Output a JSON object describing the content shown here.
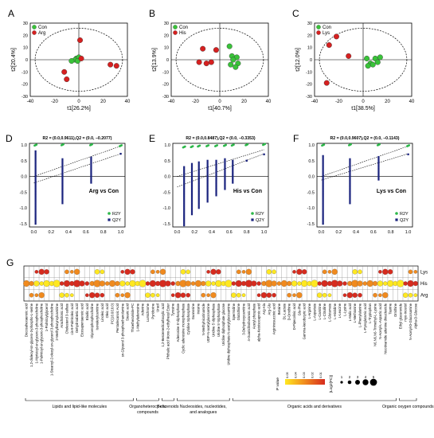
{
  "chart_data": [
    {
      "panel": "A",
      "type": "scatter",
      "xlabel": "t1[26.2%]",
      "ylabel": "t2[20.4%]",
      "xlim": [
        -40,
        40
      ],
      "ylim": [
        -30,
        30
      ],
      "xticks": [
        -40,
        -20,
        0,
        20,
        40
      ],
      "yticks": [
        -30,
        -20,
        -10,
        0,
        10,
        20,
        30
      ],
      "legend": [
        "Con",
        "Arg"
      ],
      "series": [
        {
          "name": "Con",
          "points": [
            [
              -2,
              1
            ],
            [
              -3,
              0
            ],
            [
              0,
              2
            ],
            [
              -6,
              -1
            ],
            [
              -1,
              -1
            ]
          ]
        },
        {
          "name": "Arg",
          "points": [
            [
              1,
              16
            ],
            [
              2,
              1
            ],
            [
              26,
              -4
            ],
            [
              31,
              -5
            ],
            [
              -10,
              -16
            ],
            [
              -12,
              -10
            ]
          ]
        }
      ]
    },
    {
      "panel": "B",
      "type": "scatter",
      "xlabel": "t1[40.7%]",
      "ylabel": "t2[13.9%]",
      "xlim": [
        -40,
        40
      ],
      "ylim": [
        -30,
        30
      ],
      "xticks": [
        -40,
        -20,
        0,
        20,
        40
      ],
      "yticks": [
        -30,
        -20,
        -10,
        0,
        10,
        20,
        30
      ],
      "legend": [
        "Con",
        "His"
      ],
      "series": [
        {
          "name": "Con",
          "points": [
            [
              8,
              11
            ],
            [
              10,
              3
            ],
            [
              14,
              2
            ],
            [
              15,
              -3
            ],
            [
              13,
              -6
            ],
            [
              9,
              -4
            ],
            [
              11,
              0
            ]
          ]
        },
        {
          "name": "His",
          "points": [
            [
              -14,
              9
            ],
            [
              -17,
              -2
            ],
            [
              -11,
              -3
            ],
            [
              -7,
              -2
            ],
            [
              -3,
              8
            ]
          ]
        }
      ]
    },
    {
      "panel": "C",
      "type": "scatter",
      "xlabel": "t1[38.5%]",
      "ylabel": "t2[12.0%]",
      "xlim": [
        -40,
        40
      ],
      "ylim": [
        -30,
        30
      ],
      "xticks": [
        -40,
        -20,
        0,
        20,
        40
      ],
      "yticks": [
        -30,
        -20,
        -10,
        0,
        10,
        20,
        30
      ],
      "legend": [
        "Con",
        "Lys"
      ],
      "series": [
        {
          "name": "Con",
          "points": [
            [
              3,
              1
            ],
            [
              6,
              -3
            ],
            [
              10,
              1
            ],
            [
              14,
              2
            ],
            [
              12,
              -2
            ],
            [
              4,
              -5
            ],
            [
              8,
              -4
            ]
          ]
        },
        {
          "name": "Lys",
          "points": [
            [
              -22,
              19
            ],
            [
              -28,
              12
            ],
            [
              -12,
              3
            ],
            [
              -30,
              -19
            ]
          ]
        }
      ]
    },
    {
      "panel": "D",
      "type": "scatter",
      "title": "R2 = (0.0,0.9611),Q2 = (0.0, −0.2077)",
      "annotation": "Arg vs Con",
      "xlim": [
        -0.05,
        1.05
      ],
      "ylim": [
        -1.6,
        1.05
      ],
      "xticks": [
        0.0,
        0.2,
        0.4,
        0.6,
        0.8,
        1.0
      ],
      "yticks": [
        -1.5,
        -1.0,
        -0.5,
        0.0,
        0.5,
        1.0
      ],
      "legend": [
        "R2Y",
        "Q2Y"
      ],
      "R2Y_line": [
        0.0,
        0.9611
      ],
      "Q2Y_line": [
        0.0,
        -0.2077
      ],
      "series": [
        {
          "name": "R2Y",
          "x": [
            0.02,
            0.33,
            0.66,
            1.0
          ],
          "y": [
            0.98,
            0.99,
            0.99,
            0.96
          ]
        },
        {
          "name": "Q2Y",
          "x": [
            0.02,
            0.33,
            0.66,
            1.0
          ],
          "y_range": [
            [
              -1.5,
              0.8
            ],
            [
              -0.85,
              0.55
            ],
            [
              -0.2,
              0.6
            ],
            [
              0.72,
              0.72
            ]
          ]
        }
      ]
    },
    {
      "panel": "E",
      "type": "scatter",
      "title": "R2 = (0.0,0.8487),Q2 = (0.0, −0.3353)",
      "annotation": "His vs Con",
      "xlim": [
        -0.05,
        1.05
      ],
      "ylim": [
        -1.6,
        1.05
      ],
      "xticks": [
        0.0,
        0.2,
        0.4,
        0.6,
        0.8,
        1.0
      ],
      "yticks": [
        -1.5,
        -1.0,
        -0.5,
        0.0,
        0.5,
        1.0
      ],
      "legend": [
        "R2Y",
        "Q2Y"
      ],
      "R2Y_line": [
        0.0,
        0.8487
      ],
      "Q2Y_line": [
        0.0,
        -0.3353
      ],
      "series": [
        {
          "name": "R2Y",
          "x": [
            0.08,
            0.17,
            0.25,
            0.35,
            0.45,
            0.55,
            0.64,
            0.8,
            1.0
          ],
          "y": [
            0.92,
            0.93,
            0.95,
            0.96,
            0.96,
            0.97,
            0.98,
            0.99,
            1.0
          ]
        },
        {
          "name": "Q2Y",
          "x": [
            0.08,
            0.17,
            0.25,
            0.35,
            0.45,
            0.55,
            0.64,
            0.8,
            1.0
          ],
          "y_range": [
            [
              -1.55,
              0.3
            ],
            [
              -1.2,
              0.4
            ],
            [
              -1.0,
              0.45
            ],
            [
              -0.8,
              0.5
            ],
            [
              -0.6,
              0.5
            ],
            [
              -0.4,
              0.55
            ],
            [
              -0.2,
              0.5
            ],
            [
              0.5,
              0.5
            ],
            [
              0.7,
              0.7
            ]
          ]
        }
      ]
    },
    {
      "panel": "F",
      "type": "scatter",
      "title": "R2 = (0.0,0.9607),Q2 = (0.0, −0.1143)",
      "annotation": "Lys vs Con",
      "xlim": [
        -0.05,
        1.05
      ],
      "ylim": [
        -1.6,
        1.05
      ],
      "xticks": [
        0.0,
        0.2,
        0.4,
        0.6,
        0.8,
        1.0
      ],
      "yticks": [
        -1.5,
        -1.0,
        -0.5,
        0.0,
        0.5,
        1.0
      ],
      "legend": [
        "R2Y",
        "Q2Y"
      ],
      "R2Y_line": [
        0.0,
        0.9607
      ],
      "Q2Y_line": [
        0.0,
        -0.1143
      ],
      "series": [
        {
          "name": "R2Y",
          "x": [
            0.02,
            0.33,
            0.66,
            1.0
          ],
          "y": [
            0.98,
            0.99,
            0.99,
            0.96
          ]
        },
        {
          "name": "Q2Y",
          "x": [
            0.02,
            0.33,
            0.66,
            1.0
          ],
          "y_range": [
            [
              -1.5,
              0.65
            ],
            [
              -0.85,
              0.55
            ],
            [
              -0.1,
              0.62
            ],
            [
              0.7,
              0.7
            ]
          ]
        }
      ]
    },
    {
      "panel": "G",
      "type": "heatmap",
      "rows": [
        "Lys",
        "His",
        "Arg"
      ],
      "metabolites": [
        "Docosahexaenoic acid",
        "1,2-dioleoyl-sn-glycero-3-phospho-L-serine",
        "1-Myristoyl-sn-glycero-3-phosphocholine",
        "1-Palmitoyl-sn-glycero-3-phosphocholine",
        "1-Palmitoylglycerol",
        "1-Stearoyl-2-oleoyl-sn-glycerol 3-phosphocholine",
        "2-Methylbutyroylcarnitine",
        "Arachidonic acid",
        "Cholesterol 3-sulfate",
        "cis-9-Palmitoleic acid",
        "Dehydroabietic acid",
        "Eicosapentaenoic acid",
        "Elaidic acid",
        "Glycerophosphocholine",
        "Isovalerylcarnitine",
        "Linoleic acid",
        "Oleic acid",
        "PC(16:0/16:0)",
        "Pentadecanoic Acid",
        "sn-Glycerol 3-phosphoethanolamine",
        "Stearic acid",
        "Thioetheramide-PC",
        "1-Methyladenosine",
        "Adenine",
        "Lumichrome",
        "Pyridoxine",
        "Uracil",
        "1,2-Benzenedicarboxylic acid",
        "Phthalic acid Mono-2-ethylhexyl Ester",
        "Tyrosine",
        "Adenosine 5'-diphosphate",
        "Cyclic adenosine monophosphate",
        "Cytidine triphosphate",
        "Guanosine",
        "Inosine",
        "N-Methylnicotinamide",
        "UDP-N-acetylglucosamine",
        "Uridine 5'-diphosphate",
        "Uridine 5'-triphosphate",
        "Uridine diphosphate glucose",
        "Uridine diphosphate-N-acetylglucosamine",
        "Spermidine",
        "Glutathione",
        "3-Dehydroxycarnitine",
        "4-Guanidinobutanoic acid",
        "Acetyl phosphate",
        "alpha-Ketoisocaproic acid",
        "Arg-Ala",
        "Arg-Glu",
        "Argininosuccinic acid",
        "Betaine",
        "DL-Lactate",
        "D-Ornithine",
        "D-Pipecolinic acid",
        "Glu-Phe",
        "Gamma-ketobutyric acid",
        "L-Arginine",
        "L-Aspartate",
        "L-Carnitine",
        "L-Citrulline",
        "L-Glutamate",
        "L-Histidine",
        "L-Leucine",
        "L-Lysine",
        "L-Malic acid",
        "L-Methionine",
        "L-Phenylalanine",
        "L-Pyroglutamic acid",
        "L-Tryptophan",
        "N6,N6,N6-Trimethyl-L-Lysine",
        "N-Acetyl-L-Aspartic acid",
        "Nicotinamide adenine dinucleotide",
        "Taurine",
        "Ornithine",
        "Ethyl glucuronide",
        "myo-Inositol",
        "N-Acetyl-D-Glucosamine",
        "Alpha-D-Glucose"
      ],
      "groups": [
        {
          "name": "Lipids and lipid-like molecules",
          "count": 22
        },
        {
          "name": "Organoheterocy-clic compounds",
          "count": 5
        },
        {
          "name": "Benzenoids",
          "count": 3
        },
        {
          "name": "Nucleosides, nucleotides, and analogues",
          "count": 11
        },
        {
          "name": "Organic acids and derivatives",
          "count": 33
        },
        {
          "name": "Organic oxygen compounds",
          "count": 4
        }
      ],
      "legend_p_title": "P value",
      "legend_p_ticks": [
        "0.05",
        "0.04",
        "0.03",
        "0.02",
        "0.01"
      ],
      "legend_fc_title": "|Log2(FC)|",
      "legend_fc_ticks": [
        "1",
        "2",
        "3",
        "4",
        "5"
      ],
      "colors": {
        "low_p": "#d62b1e",
        "mid_p": "#f08a1e",
        "high_p": "#ffe820"
      }
    }
  ],
  "panel_labels": [
    "A",
    "B",
    "C",
    "D",
    "E",
    "F",
    "G"
  ],
  "colors": {
    "con": "#39c339",
    "treat": "#d62020",
    "r2y": "#2db84a",
    "q2y": "#1a237e"
  }
}
